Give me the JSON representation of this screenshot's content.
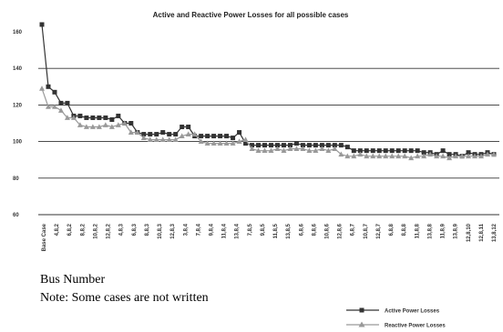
{
  "chart_data": {
    "type": "line",
    "title": "Active and Reactive Power Losses for all possible cases",
    "xlabel": "Bus Number",
    "note": "Note: Some cases are not written",
    "ylabel": "",
    "ylim": [
      60,
      160
    ],
    "yticks": [
      60,
      80,
      100,
      120,
      140,
      160
    ],
    "grid": true,
    "legend_position": "bottom-right",
    "x_tick_labels": [
      "Base Case",
      "4,8,2",
      "6,8,2",
      "8,8,2",
      "10,8,2",
      "12,8,2",
      "4,8,3",
      "6,8,3",
      "8,8,3",
      "10,8,3",
      "12,8,3",
      "3,8,4",
      "7,8,4",
      "9,8,4",
      "11,8,4",
      "13,8,4",
      "7,8,5",
      "9,8,5",
      "11,8,5",
      "13,8,5",
      "6,8,6",
      "8,8,6",
      "10,8,6",
      "12,8,6",
      "6,8,7",
      "10,8,7",
      "12,8,7",
      "6,8,8",
      "8,8,8",
      "11,8,8",
      "13,8,8",
      "11,8,9",
      "13,8,9",
      "12,8,10",
      "12,8,11",
      "13,8,12"
    ],
    "series": [
      {
        "name": "Active Power Losses",
        "color": "#333333",
        "marker": "square",
        "values": [
          164,
          130,
          127,
          121,
          121,
          114,
          114,
          113,
          113,
          113,
          113,
          112,
          114,
          110,
          110,
          105,
          104,
          104,
          104,
          105,
          104,
          104,
          108,
          108,
          103,
          103,
          103,
          103,
          103,
          103,
          102,
          105,
          99,
          98,
          98,
          98,
          98,
          98,
          98,
          98,
          99,
          98,
          98,
          98,
          98,
          98,
          98,
          98,
          97,
          95,
          95,
          95,
          95,
          95,
          95,
          95,
          95,
          95,
          95,
          95,
          94,
          94,
          93,
          95,
          93,
          93,
          92,
          94,
          93,
          93,
          94,
          93
        ]
      },
      {
        "name": "Reactive Power Losses",
        "color": "#999999",
        "marker": "triangle",
        "values": [
          129,
          119,
          119,
          117,
          113,
          113,
          109,
          108,
          108,
          108,
          109,
          108,
          109,
          110,
          105,
          105,
          102,
          101,
          101,
          101,
          101,
          101,
          103,
          104,
          104,
          100,
          99,
          99,
          99,
          99,
          99,
          100,
          101,
          96,
          95,
          95,
          95,
          96,
          95,
          96,
          96,
          96,
          95,
          95,
          96,
          95,
          96,
          93,
          92,
          92,
          93,
          92,
          92,
          92,
          92,
          92,
          92,
          92,
          91,
          92,
          92,
          93,
          92,
          92,
          91,
          92,
          92,
          92,
          92,
          92,
          93,
          93
        ]
      }
    ]
  }
}
